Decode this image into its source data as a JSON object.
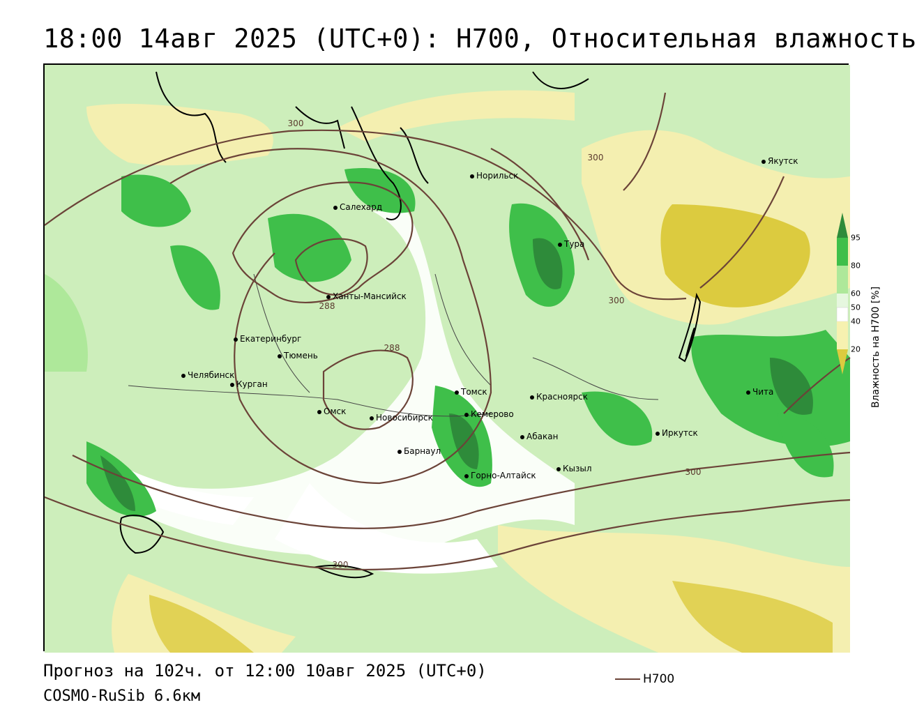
{
  "header": {
    "title": "18:00 14авг 2025 (UTC+0): H700, Относительная влажность"
  },
  "footer": {
    "forecast": "Прогноз на 102ч. от 12:00 10авг 2025 (UTC+0)",
    "model": "COSMO-RuSib 6.6км",
    "legend_label": "H700"
  },
  "colorbar": {
    "title": "Влажность на H700 [%]",
    "ticks": [
      "95",
      "80",
      "60",
      "50",
      "40",
      "20"
    ],
    "colors": {
      "above_95": "#2e8b3a",
      "80_95": "#3fbf4a",
      "60_80": "#aee89a",
      "50_60": "#e6f7df",
      "40_50": "#ffffff",
      "20_40": "#f6f1b0",
      "below_20": "#dccb3f"
    }
  },
  "contour_color": "#6b4338",
  "contour_labels": [
    "300",
    "300",
    "300",
    "288",
    "288",
    "300",
    "300"
  ],
  "cities": [
    {
      "name": "Норильск"
    },
    {
      "name": "Якутск"
    },
    {
      "name": "Салехард"
    },
    {
      "name": "Тура"
    },
    {
      "name": "Ханты-Мансийск"
    },
    {
      "name": "Екатеринбург"
    },
    {
      "name": "Тюмень"
    },
    {
      "name": "Челябинск"
    },
    {
      "name": "Курган"
    },
    {
      "name": "Омск"
    },
    {
      "name": "Новосибирск"
    },
    {
      "name": "Томск"
    },
    {
      "name": "Кемерово"
    },
    {
      "name": "Красноярск"
    },
    {
      "name": "Абакан"
    },
    {
      "name": "Барнаул"
    },
    {
      "name": "Горно-Алтайск"
    },
    {
      "name": "Кызыл"
    },
    {
      "name": "Иркутск"
    },
    {
      "name": "Чита"
    }
  ]
}
